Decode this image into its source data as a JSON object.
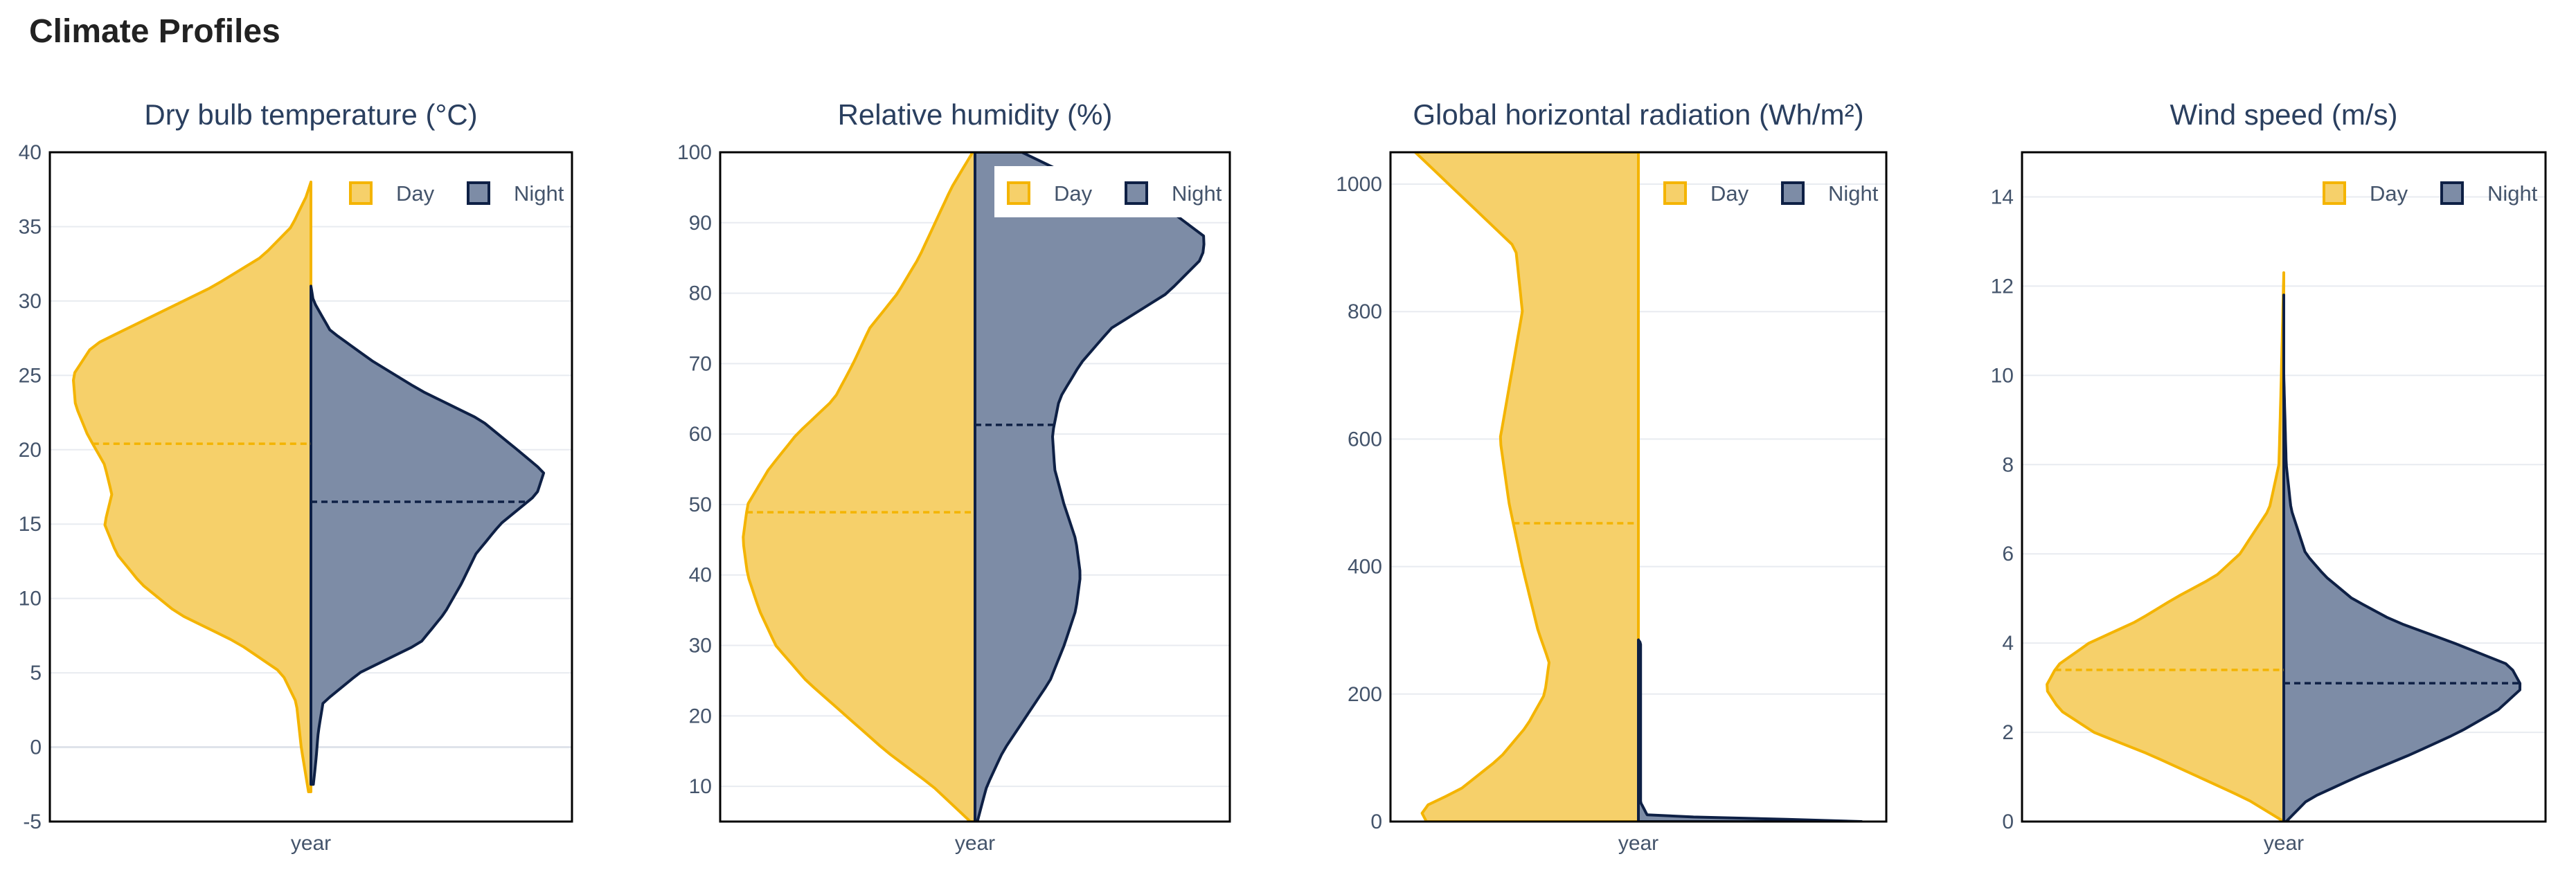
{
  "page": {
    "title": "Climate Profiles"
  },
  "colors": {
    "day": "#f4b400",
    "day_fill": "#f6d06a",
    "night": "#0e2045",
    "night_fill": "#7d8ca6"
  },
  "chart_data": [
    {
      "type": "violin",
      "title": "Dry bulb temperature (°C)",
      "xlabel": "year",
      "ylim": [
        -5,
        40
      ],
      "yticks": [
        -5,
        0,
        5,
        10,
        15,
        20,
        25,
        30,
        35,
        40
      ],
      "legend": [
        "Day",
        "Night"
      ],
      "legend_position": "top-right",
      "series": [
        {
          "name": "Day",
          "median": 20.4,
          "density": [
            [
              -3,
              0.01
            ],
            [
              -2,
              0.02
            ],
            [
              0,
              0.04
            ],
            [
              3,
              0.06
            ],
            [
              5,
              0.12
            ],
            [
              7,
              0.3
            ],
            [
              9,
              0.55
            ],
            [
              11,
              0.7
            ],
            [
              13,
              0.8
            ],
            [
              15,
              0.85
            ],
            [
              17,
              0.82
            ],
            [
              19,
              0.85
            ],
            [
              21,
              0.92
            ],
            [
              23,
              0.97
            ],
            [
              25,
              0.98
            ],
            [
              27,
              0.9
            ],
            [
              29,
              0.65
            ],
            [
              31,
              0.4
            ],
            [
              33,
              0.2
            ],
            [
              35,
              0.08
            ],
            [
              37,
              0.02
            ],
            [
              38,
              0.0
            ]
          ]
        },
        {
          "name": "Night",
          "median": 16.5,
          "density": [
            [
              -2.5,
              0.01
            ],
            [
              -1,
              0.02
            ],
            [
              1,
              0.03
            ],
            [
              3,
              0.05
            ],
            [
              5,
              0.2
            ],
            [
              7,
              0.45
            ],
            [
              9,
              0.55
            ],
            [
              11,
              0.62
            ],
            [
              13,
              0.68
            ],
            [
              15,
              0.78
            ],
            [
              17,
              0.93
            ],
            [
              18.5,
              0.96
            ],
            [
              20,
              0.85
            ],
            [
              22,
              0.7
            ],
            [
              24,
              0.45
            ],
            [
              26,
              0.25
            ],
            [
              28,
              0.08
            ],
            [
              30,
              0.01
            ],
            [
              31,
              0.0
            ]
          ]
        }
      ]
    },
    {
      "type": "violin",
      "title": "Relative humidity (%)",
      "xlabel": "year",
      "ylim": [
        5,
        100
      ],
      "yticks": [
        10,
        20,
        30,
        40,
        50,
        60,
        70,
        80,
        90,
        100
      ],
      "legend": [
        "Day",
        "Night"
      ],
      "legend_position": "top-right",
      "series": [
        {
          "name": "Day",
          "median": 48.9,
          "density": [
            [
              5,
              0.02
            ],
            [
              10,
              0.18
            ],
            [
              15,
              0.38
            ],
            [
              20,
              0.55
            ],
            [
              25,
              0.72
            ],
            [
              30,
              0.85
            ],
            [
              35,
              0.92
            ],
            [
              40,
              0.97
            ],
            [
              45,
              0.99
            ],
            [
              50,
              0.97
            ],
            [
              55,
              0.88
            ],
            [
              60,
              0.76
            ],
            [
              65,
              0.6
            ],
            [
              70,
              0.52
            ],
            [
              75,
              0.45
            ],
            [
              80,
              0.33
            ],
            [
              85,
              0.24
            ],
            [
              90,
              0.17
            ],
            [
              95,
              0.1
            ],
            [
              100,
              0.01
            ]
          ]
        },
        {
          "name": "Night",
          "median": 61.3,
          "density": [
            [
              5,
              0.01
            ],
            [
              10,
              0.05
            ],
            [
              15,
              0.12
            ],
            [
              20,
              0.22
            ],
            [
              25,
              0.32
            ],
            [
              30,
              0.38
            ],
            [
              35,
              0.43
            ],
            [
              40,
              0.45
            ],
            [
              45,
              0.43
            ],
            [
              50,
              0.38
            ],
            [
              55,
              0.34
            ],
            [
              60,
              0.33
            ],
            [
              65,
              0.36
            ],
            [
              70,
              0.45
            ],
            [
              75,
              0.58
            ],
            [
              80,
              0.82
            ],
            [
              85,
              0.97
            ],
            [
              88,
              0.98
            ],
            [
              92,
              0.82
            ],
            [
              96,
              0.45
            ],
            [
              100,
              0.2
            ]
          ]
        }
      ]
    },
    {
      "type": "violin",
      "title": "Global horizontal radiation (Wh/m²)",
      "xlabel": "year",
      "ylim": [
        0,
        1050
      ],
      "yticks": [
        0,
        200,
        400,
        600,
        800,
        1000
      ],
      "legend": [
        "Day",
        "Night"
      ],
      "legend_position": "top-right",
      "series": [
        {
          "name": "Day",
          "median": 468,
          "density": [
            [
              0,
              0.95
            ],
            [
              20,
              0.98
            ],
            [
              50,
              0.8
            ],
            [
              100,
              0.62
            ],
            [
              150,
              0.5
            ],
            [
              200,
              0.42
            ],
            [
              250,
              0.4
            ],
            [
              300,
              0.45
            ],
            [
              400,
              0.52
            ],
            [
              500,
              0.58
            ],
            [
              600,
              0.62
            ],
            [
              700,
              0.57
            ],
            [
              800,
              0.52
            ],
            [
              900,
              0.55
            ],
            [
              950,
              0.7
            ],
            [
              1000,
              0.85
            ],
            [
              1050,
              1.0
            ]
          ]
        },
        {
          "name": "Night",
          "median": 0,
          "density": [
            [
              0,
              1.0
            ],
            [
              2,
              0.95
            ],
            [
              5,
              0.4
            ],
            [
              10,
              0.04
            ],
            [
              30,
              0.01
            ],
            [
              100,
              0.01
            ],
            [
              200,
              0.01
            ],
            [
              280,
              0.01
            ],
            [
              285,
              0.0
            ]
          ]
        }
      ]
    },
    {
      "type": "violin",
      "title": "Wind speed (m/s)",
      "xlabel": "year",
      "ylim": [
        0,
        15
      ],
      "yticks": [
        0,
        2,
        4,
        6,
        8,
        10,
        12,
        14
      ],
      "legend": [
        "Day",
        "Night"
      ],
      "legend_position": "top-right",
      "series": [
        {
          "name": "Day",
          "median": 3.4,
          "density": [
            [
              0,
              0.0
            ],
            [
              0.5,
              0.15
            ],
            [
              1,
              0.35
            ],
            [
              1.5,
              0.55
            ],
            [
              2,
              0.78
            ],
            [
              2.5,
              0.92
            ],
            [
              3,
              0.98
            ],
            [
              3.5,
              0.93
            ],
            [
              4,
              0.8
            ],
            [
              4.5,
              0.6
            ],
            [
              5,
              0.45
            ],
            [
              5.5,
              0.28
            ],
            [
              6,
              0.18
            ],
            [
              7,
              0.06
            ],
            [
              8,
              0.02
            ],
            [
              10,
              0.01
            ],
            [
              12.3,
              0.0
            ]
          ]
        },
        {
          "name": "Night",
          "median": 3.1,
          "density": [
            [
              0,
              0.01
            ],
            [
              0.5,
              0.1
            ],
            [
              1,
              0.3
            ],
            [
              1.5,
              0.52
            ],
            [
              2,
              0.72
            ],
            [
              2.5,
              0.88
            ],
            [
              3,
              0.98
            ],
            [
              3.5,
              0.93
            ],
            [
              4,
              0.7
            ],
            [
              4.5,
              0.45
            ],
            [
              5,
              0.28
            ],
            [
              5.5,
              0.17
            ],
            [
              6,
              0.09
            ],
            [
              7,
              0.03
            ],
            [
              8,
              0.01
            ],
            [
              10,
              0.0
            ],
            [
              11.8,
              0.0
            ]
          ]
        }
      ]
    }
  ]
}
